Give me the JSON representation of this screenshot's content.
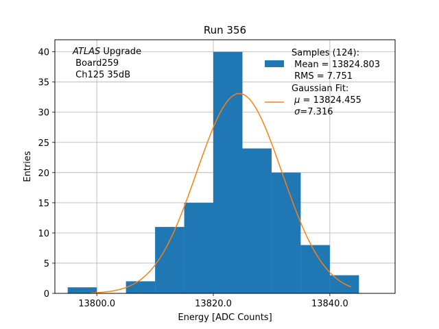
{
  "chart_data": {
    "type": "bar",
    "title": "Run 356",
    "xlabel": "Energy [ADC Counts]",
    "ylabel": "Entries",
    "xlim": [
      13792.8,
      13851.2
    ],
    "ylim": [
      0,
      42
    ],
    "x_ticks": [
      13800.0,
      13820.0,
      13840.0
    ],
    "x_tick_labels": [
      "13800.0",
      "13820.0",
      "13840.0"
    ],
    "y_ticks": [
      0,
      5,
      10,
      15,
      20,
      25,
      30,
      35,
      40
    ],
    "y_tick_labels": [
      "0",
      "5",
      "10",
      "15",
      "20",
      "25",
      "30",
      "35",
      "40"
    ],
    "grid": true,
    "legend_placement": "top-right",
    "histogram": {
      "name": "Samples (124):\n Mean = 13824.803\n RMS = 7.751",
      "color": "#1f77b4",
      "bin_edges": [
        13795,
        13800,
        13805,
        13810,
        13815,
        13820,
        13825,
        13830,
        13835,
        13840,
        13845
      ],
      "counts": [
        1,
        0,
        2,
        11,
        15,
        40,
        24,
        20,
        8,
        3
      ]
    },
    "fit": {
      "name": "Gaussian Fit:\n $\\mu$ = 13824.455\n $\\sigma$=7.316",
      "color": "#ff7f0e",
      "mu": 13824.455,
      "sigma": 7.316,
      "amplitude": 33.1,
      "x_range": [
        13798.9,
        13843.6
      ]
    },
    "annotation_lines": [
      [
        {
          "text": "ATLAS",
          "italic": true
        },
        {
          "text": " Upgrade",
          "italic": false
        }
      ],
      [
        {
          "text": " Board259",
          "italic": false
        }
      ],
      [
        {
          "text": " Ch125 35dB",
          "italic": false
        }
      ]
    ],
    "legend_lines": {
      "samples": [
        "Samples (124):",
        " Mean = 13824.803",
        " RMS = 7.751"
      ],
      "fit": [
        [
          {
            "text": "Gaussian Fit:",
            "italic": false
          }
        ],
        [
          {
            "text": " ",
            "italic": false
          },
          {
            "text": "μ",
            "italic": true
          },
          {
            "text": " = 13824.455",
            "italic": false
          }
        ],
        [
          {
            "text": " ",
            "italic": false
          },
          {
            "text": "σ",
            "italic": true
          },
          {
            "text": "=7.316",
            "italic": false
          }
        ]
      ]
    }
  }
}
